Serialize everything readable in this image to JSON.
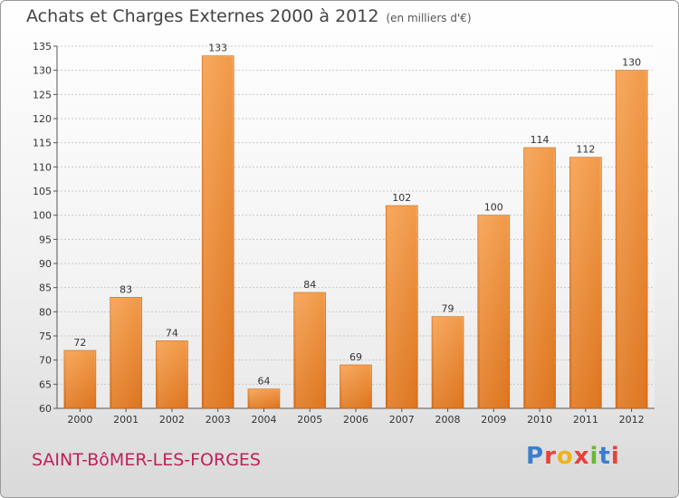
{
  "header": {
    "title": "Achats et Charges Externes 2000 à 2012",
    "unit": "(en milliers d'€)"
  },
  "footer": {
    "commune": "SAINT-BôMER-LES-FORGES",
    "brand": "Proxiti",
    "brand_colors": [
      "#3a7fd0",
      "#e8423a",
      "#f0b21a",
      "#e8423a",
      "#6bb832",
      "#3a7fd0",
      "#e8423a"
    ]
  },
  "chart_data": {
    "type": "bar",
    "title": "Achats et Charges Externes 2000 à 2012",
    "subtitle": "(en milliers d'€)",
    "categories": [
      "2000",
      "2001",
      "2002",
      "2003",
      "2004",
      "2005",
      "2006",
      "2007",
      "2008",
      "2009",
      "2010",
      "2011",
      "2012"
    ],
    "values": [
      72,
      83,
      74,
      133,
      64,
      84,
      69,
      102,
      79,
      100,
      114,
      112,
      130
    ],
    "ylim": [
      60,
      135
    ],
    "yticks": [
      60,
      65,
      70,
      75,
      80,
      85,
      90,
      95,
      100,
      105,
      110,
      115,
      120,
      125,
      130,
      135
    ],
    "grid": true,
    "bar_color": "#ee8a2f",
    "data_labels": true
  }
}
